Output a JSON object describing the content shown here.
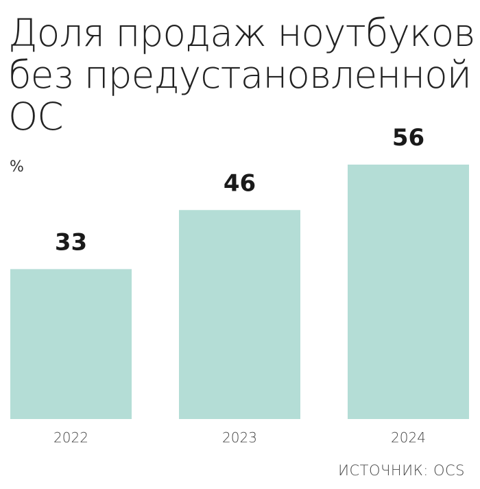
{
  "chart_data": {
    "type": "bar",
    "title_lines": [
      "Доля продаж ноутбуков",
      "без предустановленной",
      "ОС"
    ],
    "unit": "%",
    "categories": [
      "2022",
      "2023",
      "2024"
    ],
    "values": [
      33,
      46,
      56
    ],
    "value_labels": [
      "33",
      "46",
      "56"
    ],
    "bar_color": "#b4ddd6",
    "ylim": [
      0,
      56
    ],
    "grid": false,
    "source": "ИСТОЧНИК: OCS"
  }
}
